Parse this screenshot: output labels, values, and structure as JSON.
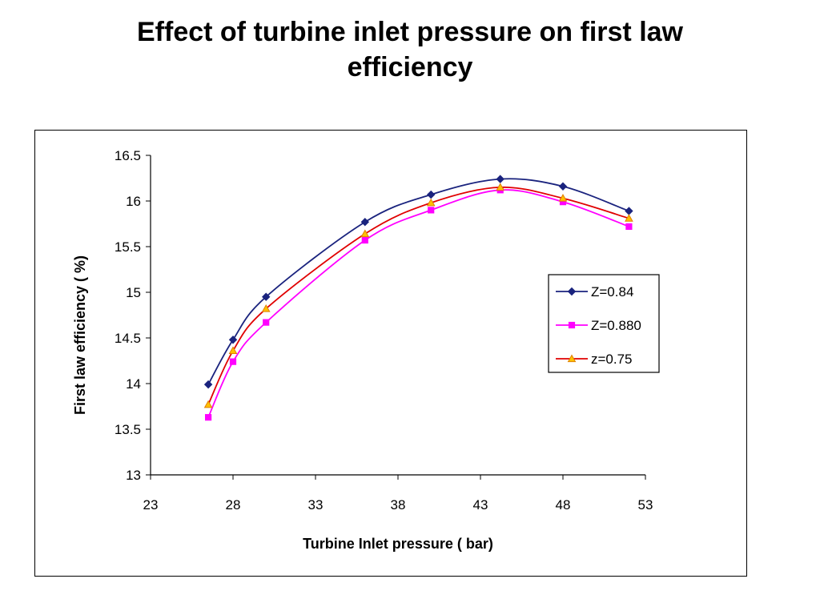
{
  "slide": {
    "title_line1": "Effect of turbine inlet pressure on first law",
    "title_line2": "efficiency"
  },
  "chart_data": {
    "type": "line",
    "title": "",
    "xlabel": "Turbine Inlet pressure ( bar)",
    "ylabel": "First law efficiency ( %)",
    "xlim": [
      23,
      53
    ],
    "ylim": [
      13,
      16.5
    ],
    "x_ticks": [
      23,
      28,
      33,
      38,
      43,
      48,
      53
    ],
    "y_ticks": [
      13,
      13.5,
      14,
      14.5,
      15,
      15.5,
      16,
      16.5
    ],
    "x_tick_labels": [
      "23",
      "28",
      "33",
      "38",
      "43",
      "48",
      "53"
    ],
    "y_tick_labels": [
      "13",
      "13.5",
      "14",
      "14.5",
      "15",
      "15.5",
      "16",
      "16.5"
    ],
    "grid": false,
    "legend_position": "right",
    "x": [
      26.5,
      28,
      30,
      36,
      40,
      44.2,
      48,
      52
    ],
    "series": [
      {
        "name": "Z=0.84",
        "color": "#1a237e",
        "marker": "diamond",
        "values": [
          13.99,
          14.48,
          14.95,
          15.77,
          16.07,
          16.24,
          16.16,
          15.89
        ]
      },
      {
        "name": "Z=0.880",
        "color": "#ff00ff",
        "marker": "square",
        "values": [
          13.63,
          14.24,
          14.67,
          15.57,
          15.9,
          16.12,
          15.99,
          15.72
        ]
      },
      {
        "name": "z=0.75",
        "color": "#e00000",
        "marker": "triangle",
        "marker_fill": "#ffc000",
        "values": [
          13.77,
          14.36,
          14.82,
          15.64,
          15.98,
          16.15,
          16.03,
          15.81
        ]
      }
    ]
  }
}
